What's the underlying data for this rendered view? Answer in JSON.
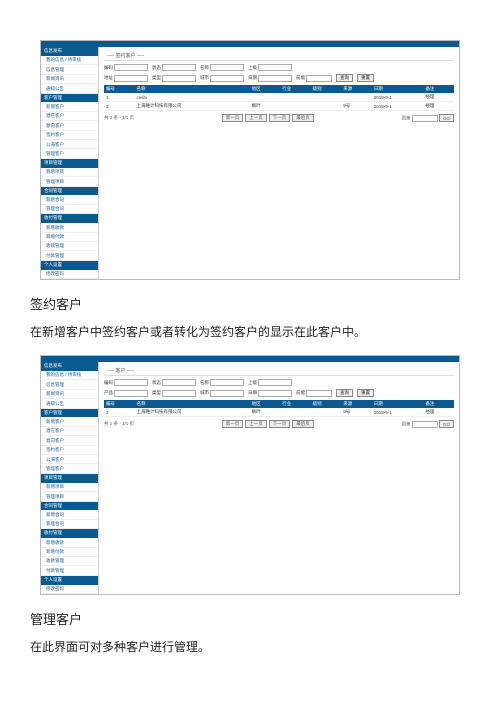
{
  "colors": {
    "brand": "#0a5a8f",
    "text": "#222222",
    "link": "#1a5a8a",
    "border": "#d0d0d0",
    "table_header_bg": "#0a5a8f",
    "background": "#ffffff"
  },
  "sidebar": {
    "groups": [
      {
        "header": "信息发布",
        "items": [
          "我的信息 / 待审核",
          "信息管理",
          "新闻资讯",
          "通知公告"
        ]
      },
      {
        "header": "客户管理",
        "items": [
          "新增客户",
          "潜在客户",
          "意向客户",
          "签约客户",
          "公海客户",
          "管理客户"
        ]
      },
      {
        "header": "项目管理",
        "items": [
          "新增项目",
          "管理项目"
        ]
      },
      {
        "header": "合同管理",
        "items": [
          "新增合同",
          "管理合同"
        ]
      },
      {
        "header": "收付管理",
        "items": [
          "新增收款",
          "新增付款",
          "收款管理",
          "付款管理"
        ]
      },
      {
        "header": "个人设置",
        "items": [
          "修改密码"
        ]
      }
    ]
  },
  "screenshot1": {
    "page_title": "── 签约客户 ──",
    "search": {
      "fields_row1": [
        {
          "label": "编码",
          "value": ""
        },
        {
          "label": "状态",
          "value": ""
        },
        {
          "label": "名称",
          "value": ""
        },
        {
          "label": "上级",
          "value": ""
        }
      ],
      "fields_row2": [
        {
          "label": "地址",
          "value": ""
        },
        {
          "label": "类型",
          "value": ""
        },
        {
          "label": "城市",
          "value": ""
        },
        {
          "label": "日期",
          "value": ""
        }
      ],
      "prefix_label": "前缀",
      "buttons": [
        "查询",
        "重置"
      ]
    },
    "table": {
      "columns": [
        "编号",
        "名称",
        "地区",
        "行业",
        "级别",
        "来源",
        "日期",
        "备注"
      ],
      "rows": [
        [
          "1",
          "ceshi",
          "",
          "",
          "",
          "",
          "2018-9-1",
          "经理"
        ],
        [
          "2",
          "上海唯计科技有限公司",
          "枫叶",
          "",
          "",
          "9号",
          "2018-9-1",
          "经理"
        ]
      ]
    },
    "pager": {
      "count_text": "共 2 条 · 1/1 页",
      "buttons": [
        "第一页",
        "上一页",
        "下一页",
        "最后页"
      ],
      "jump_label": "到第",
      "jump_btn": "GO"
    }
  },
  "section1": {
    "heading": "签约客户",
    "desc": "在新增客户中签约客户或者转化为签约客户的显示在此客户中。"
  },
  "screenshot2": {
    "page_title": "── 客户 ──",
    "search": {
      "fields_row1": [
        {
          "label": "编码",
          "value": ""
        },
        {
          "label": "状态",
          "value": ""
        },
        {
          "label": "名称",
          "value": ""
        },
        {
          "label": "上级",
          "value": ""
        }
      ],
      "fields_row2": [
        {
          "label": "产品",
          "value": ""
        },
        {
          "label": "类型",
          "value": ""
        },
        {
          "label": "城市",
          "value": ""
        },
        {
          "label": "日期",
          "value": ""
        }
      ],
      "prefix_label": "前缀",
      "buttons": [
        "查询",
        "重置"
      ]
    },
    "table": {
      "columns": [
        "编号",
        "名称",
        "地区",
        "行业",
        "级别",
        "来源",
        "日期",
        "备注"
      ],
      "rows": [
        [
          "2",
          "上海唯计科技有限公司",
          "枫叶",
          "",
          "",
          "9号",
          "2018-9-1",
          "经理"
        ]
      ]
    },
    "pager": {
      "count_text": "共 1 条 · 1/1 页",
      "buttons": [
        "第一页",
        "上一页",
        "下一页",
        "最后页"
      ],
      "jump_label": "到第",
      "jump_btn": "GO"
    }
  },
  "section2": {
    "heading": "管理客户",
    "desc": "在此界面可对多种客户进行管理。"
  }
}
